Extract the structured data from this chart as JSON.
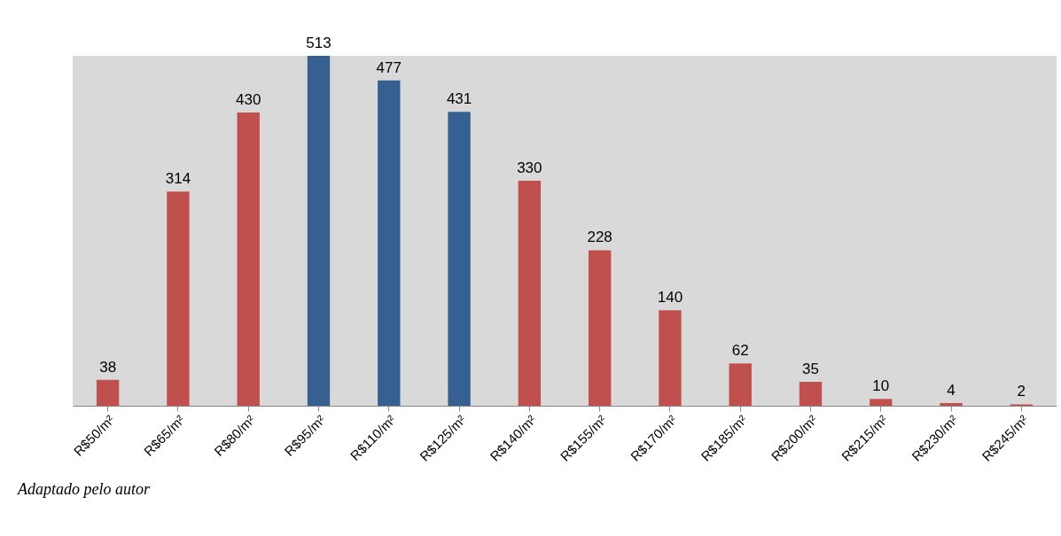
{
  "chart_data": {
    "type": "bar",
    "categories": [
      "R$50/m²",
      "R$65/m²",
      "R$80/m²",
      "R$95/m²",
      "R$110/m²",
      "R$125/m²",
      "R$140/m²",
      "R$155/m²",
      "R$170/m²",
      "R$185/m²",
      "R$200/m²",
      "R$215/m²",
      "R$230/m²",
      "R$245/m²"
    ],
    "values": [
      38,
      314,
      430,
      513,
      477,
      431,
      330,
      228,
      140,
      62,
      35,
      10,
      4,
      2
    ],
    "colors": [
      "#c0504d",
      "#c0504d",
      "#c0504d",
      "#376092",
      "#376092",
      "#376092",
      "#c0504d",
      "#c0504d",
      "#c0504d",
      "#c0504d",
      "#c0504d",
      "#c0504d",
      "#c0504d",
      "#c0504d"
    ],
    "data_labels": true,
    "annotations": [
      "Adaptado pelo autor"
    ]
  }
}
